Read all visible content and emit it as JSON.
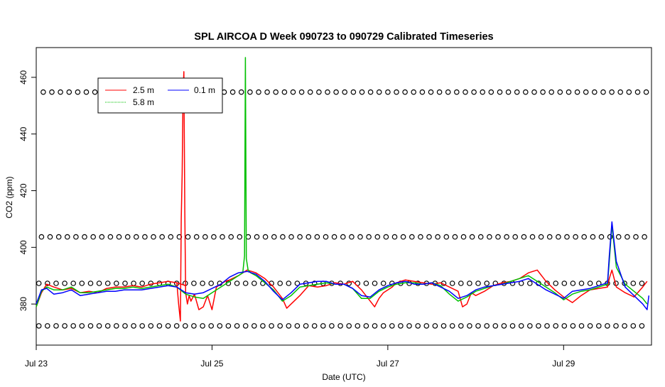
{
  "chart_data": {
    "type": "line",
    "title": "SPL AIRCOA D  Week 090723 to 090729  Calibrated Timeseries",
    "xlabel": "Date (UTC)",
    "ylabel": "CO2 (ppm)",
    "xlim": [
      0,
      7.0
    ],
    "ylim": [
      365.5,
      470.5
    ],
    "x_ticks": [
      {
        "x": 0,
        "label": "Jul 23"
      },
      {
        "x": 2,
        "label": "Jul 25"
      },
      {
        "x": 4,
        "label": "Jul 27"
      },
      {
        "x": 6,
        "label": "Jul 29"
      }
    ],
    "y_ticks": [
      380,
      400,
      420,
      440,
      460
    ],
    "grid": false,
    "legend_position": "top-left",
    "series": [
      {
        "name": "2.5 m",
        "color": "#ff0000",
        "x": [
          0.0,
          0.06,
          0.12,
          0.2,
          0.3,
          0.4,
          0.5,
          0.6,
          0.7,
          0.8,
          0.9,
          1.0,
          1.1,
          1.2,
          1.3,
          1.4,
          1.5,
          1.6,
          1.7,
          1.5999,
          1.62,
          1.64,
          1.65,
          1.66,
          1.67,
          1.68,
          1.69,
          1.7,
          1.72,
          1.74,
          1.76,
          1.8,
          1.85,
          1.9,
          1.95,
          2.0,
          2.05,
          2.1,
          2.15,
          2.2,
          2.3,
          2.4,
          2.45,
          2.5,
          2.6,
          2.7,
          2.8,
          2.85,
          2.9,
          3.0,
          3.1,
          3.2,
          3.3,
          3.4,
          3.5,
          3.6,
          3.7,
          3.8,
          3.85,
          3.9,
          3.95,
          4.0,
          4.05,
          4.1,
          4.2,
          4.3,
          4.4,
          4.5,
          4.6,
          4.7,
          4.8,
          4.85,
          4.9,
          4.95,
          5.0,
          5.1,
          5.2,
          5.3,
          5.4,
          5.5,
          5.6,
          5.7,
          5.8,
          5.9,
          6.0,
          6.1,
          6.2,
          6.3,
          6.4,
          6.5,
          6.52,
          6.55,
          6.6,
          6.7,
          6.8,
          6.9,
          6.95
        ],
        "y": [
          379.0,
          384.0,
          387.0,
          386.0,
          385.0,
          385.5,
          384.0,
          384.5,
          384.0,
          385.5,
          386.0,
          386.0,
          386.5,
          386.0,
          387.0,
          387.5,
          388.0,
          387.5,
          386.5,
          387.5,
          380.0,
          374.0,
          410.0,
          426.0,
          454.0,
          462.0,
          413.0,
          384.0,
          380.0,
          383.0,
          381.0,
          383.5,
          378.0,
          379.0,
          383.0,
          378.0,
          386.0,
          387.0,
          388.0,
          388.5,
          390.0,
          392.0,
          391.5,
          391.0,
          389.0,
          386.0,
          382.0,
          378.5,
          380.0,
          383.0,
          386.5,
          386.0,
          386.5,
          387.5,
          387.0,
          388.0,
          385.0,
          381.0,
          379.0,
          382.0,
          384.0,
          385.0,
          386.0,
          387.5,
          388.5,
          388.0,
          387.5,
          387.0,
          387.5,
          386.0,
          384.5,
          379.0,
          380.0,
          384.0,
          383.0,
          384.5,
          386.5,
          387.5,
          388.0,
          389.0,
          391.0,
          392.0,
          388.0,
          385.0,
          382.5,
          380.5,
          383.0,
          385.0,
          385.5,
          386.0,
          389.0,
          392.0,
          386.0,
          384.0,
          382.5,
          386.0,
          388.0
        ],
        "note": "",
        "note2": ""
      },
      {
        "name": "5.8 m",
        "color": "#00c000",
        "x": [
          0.0,
          0.06,
          0.12,
          0.2,
          0.3,
          0.4,
          0.5,
          0.6,
          0.7,
          0.8,
          0.9,
          1.0,
          1.1,
          1.2,
          1.3,
          1.4,
          1.5,
          1.6,
          1.7,
          1.8,
          1.9,
          2.0,
          2.1,
          2.2,
          2.3,
          2.35,
          2.37,
          2.38,
          2.39,
          2.41,
          2.44,
          2.5,
          2.6,
          2.7,
          2.8,
          2.9,
          3.0,
          3.1,
          3.2,
          3.3,
          3.4,
          3.5,
          3.6,
          3.7,
          3.8,
          3.9,
          4.0,
          4.1,
          4.2,
          4.3,
          4.4,
          4.5,
          4.6,
          4.7,
          4.8,
          4.9,
          5.0,
          5.1,
          5.2,
          5.3,
          5.4,
          5.5,
          5.6,
          5.7,
          5.8,
          5.9,
          6.0,
          6.1,
          6.2,
          6.3,
          6.4,
          6.5,
          6.52,
          6.55,
          6.6,
          6.7,
          6.8,
          6.9,
          6.95
        ],
        "y": [
          379.0,
          384.5,
          386.0,
          385.0,
          385.0,
          386.0,
          384.0,
          384.0,
          384.5,
          385.0,
          385.5,
          385.5,
          386.0,
          385.5,
          386.0,
          386.5,
          387.0,
          386.0,
          383.5,
          382.5,
          382.0,
          384.0,
          386.0,
          388.0,
          390.0,
          391.0,
          397.0,
          467.0,
          396.0,
          392.0,
          391.0,
          390.0,
          387.5,
          385.0,
          381.0,
          383.0,
          386.0,
          386.5,
          387.0,
          387.5,
          387.0,
          387.0,
          385.5,
          382.0,
          382.0,
          384.5,
          386.0,
          387.0,
          387.5,
          387.5,
          387.0,
          387.5,
          386.5,
          383.5,
          381.0,
          382.5,
          384.5,
          385.5,
          386.5,
          387.0,
          388.0,
          389.0,
          390.0,
          388.0,
          386.0,
          384.0,
          381.5,
          383.5,
          384.5,
          385.0,
          386.0,
          387.0,
          395.0,
          408.0,
          393.0,
          387.0,
          384.5,
          382.0,
          380.0
        ],
        "note": ""
      },
      {
        "name": "0.1 m",
        "color": "#0000ff",
        "x": [
          0.0,
          0.06,
          0.12,
          0.2,
          0.3,
          0.4,
          0.5,
          0.6,
          0.7,
          0.8,
          0.9,
          1.0,
          1.1,
          1.2,
          1.3,
          1.4,
          1.5,
          1.6,
          1.7,
          1.8,
          1.9,
          2.0,
          2.1,
          2.2,
          2.3,
          2.4,
          2.5,
          2.6,
          2.7,
          2.8,
          2.9,
          3.0,
          3.1,
          3.2,
          3.3,
          3.4,
          3.5,
          3.6,
          3.7,
          3.8,
          3.9,
          4.0,
          4.1,
          4.2,
          4.3,
          4.4,
          4.5,
          4.6,
          4.7,
          4.8,
          4.9,
          5.0,
          5.1,
          5.2,
          5.3,
          5.4,
          5.5,
          5.6,
          5.7,
          5.8,
          5.9,
          6.0,
          6.1,
          6.2,
          6.3,
          6.4,
          6.5,
          6.52,
          6.55,
          6.6,
          6.7,
          6.8,
          6.9,
          6.95,
          6.97
        ],
        "y": [
          380.0,
          385.0,
          385.5,
          383.5,
          384.0,
          385.0,
          383.0,
          383.5,
          384.0,
          384.5,
          384.5,
          385.0,
          385.0,
          385.0,
          385.5,
          386.0,
          386.5,
          386.0,
          384.0,
          383.5,
          384.0,
          385.5,
          387.0,
          389.5,
          391.0,
          391.5,
          390.5,
          388.0,
          384.5,
          381.5,
          384.0,
          387.0,
          387.5,
          388.0,
          388.0,
          387.0,
          387.0,
          385.5,
          383.0,
          382.5,
          385.0,
          386.5,
          387.5,
          388.0,
          387.0,
          387.0,
          387.5,
          386.0,
          384.5,
          382.0,
          383.0,
          385.0,
          386.0,
          386.5,
          387.0,
          387.5,
          388.0,
          389.0,
          387.0,
          385.0,
          383.5,
          382.0,
          384.5,
          385.0,
          385.5,
          386.5,
          387.5,
          397.0,
          409.0,
          395.0,
          386.0,
          383.0,
          380.0,
          378.0,
          383.0
        ]
      }
    ],
    "marker_rows": [
      {
        "y": 454.8,
        "x_start": 0.08,
        "x_end": 6.97,
        "step": 0.098
      },
      {
        "y": 403.7,
        "x_start": 0.06,
        "x_end": 6.97,
        "step": 0.098
      },
      {
        "y": 387.3,
        "x_start": 0.03,
        "x_end": 6.97,
        "step": 0.098
      },
      {
        "y": 372.3,
        "x_start": 0.03,
        "x_end": 6.97,
        "step": 0.098
      }
    ],
    "legend": [
      "2.5 m",
      "0.1 m",
      "5.8 m"
    ]
  }
}
